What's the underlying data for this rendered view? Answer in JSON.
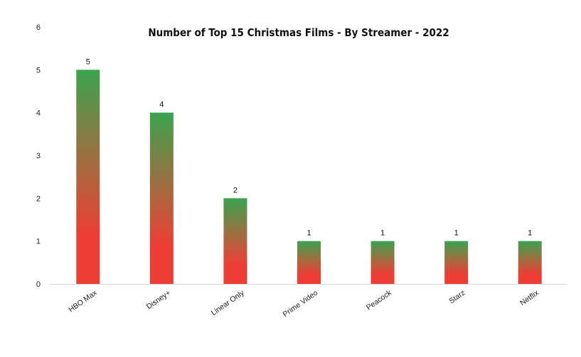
{
  "chart_data": {
    "type": "bar",
    "title": "Number of Top 15 Christmas Films - By Streamer - 2022",
    "xlabel": "",
    "ylabel": "",
    "categories": [
      "HBO Max",
      "Disney+",
      "Linear Only",
      "Prime Video",
      "Peacock",
      "Starz",
      "Netflix"
    ],
    "values": [
      5,
      4,
      2,
      1,
      1,
      1,
      1
    ],
    "data_labels": [
      "5",
      "4",
      "2",
      "1",
      "1",
      "1",
      "1"
    ],
    "ylim": [
      0,
      6
    ],
    "yticks": [
      "0",
      "1",
      "2",
      "3",
      "4",
      "5",
      "6"
    ],
    "grid": false,
    "legend": "none",
    "bar_gradient": {
      "top": "#3aa34f",
      "middle": "#a66a3e",
      "bottom": "#ee3d34"
    },
    "axis_color": "#d9d9d9"
  }
}
